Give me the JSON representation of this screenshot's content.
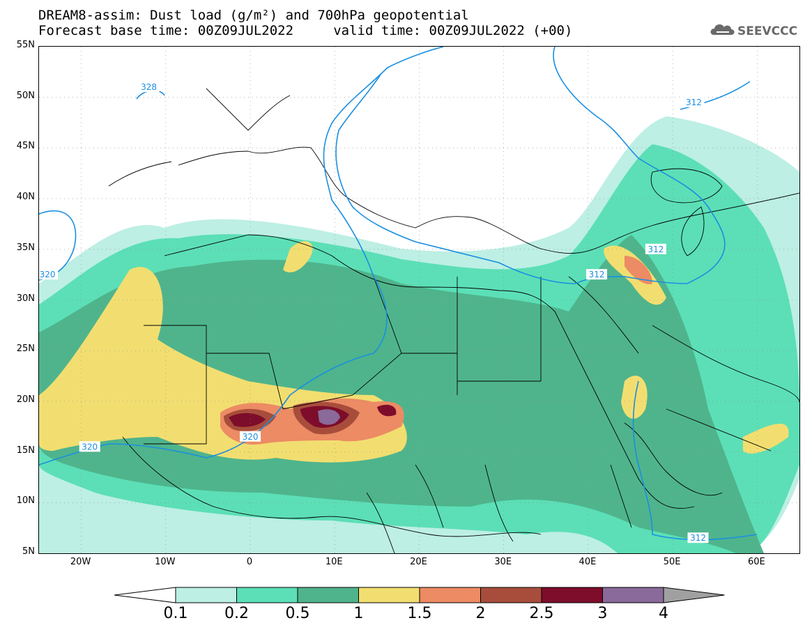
{
  "title": {
    "line1": "DREAM8-assim: Dust load (g/m²) and 700hPa geopotential",
    "line2": "Forecast base time: 00Z09JUL2022     valid time: 00Z09JUL2022 (+00)"
  },
  "logo": {
    "text": "SEEVCCC",
    "icon": "cloud-logo-icon"
  },
  "axes": {
    "lat_labels": [
      "55N",
      "50N",
      "45N",
      "40N",
      "35N",
      "30N",
      "25N",
      "20N",
      "15N",
      "10N",
      "5N"
    ],
    "lon_labels": [
      "20W",
      "10W",
      "0",
      "10E",
      "20E",
      "30E",
      "40E",
      "50E",
      "60E"
    ]
  },
  "map": {
    "lon_range": [
      -25,
      65
    ],
    "lat_range": [
      5,
      55
    ],
    "grid": true,
    "contour_labels": [
      {
        "text": "328",
        "lon": -12,
        "lat": 51
      },
      {
        "text": "320",
        "lon": -24,
        "lat": 32.5
      },
      {
        "text": "320",
        "lon": -19,
        "lat": 15.5
      },
      {
        "text": "320",
        "lon": 0,
        "lat": 16.5
      },
      {
        "text": "312",
        "lon": 41,
        "lat": 32.5
      },
      {
        "text": "312",
        "lon": 48,
        "lat": 35
      },
      {
        "text": "312",
        "lon": 52.5,
        "lat": 49.5
      },
      {
        "text": "312",
        "lon": 53,
        "lat": 6.5
      }
    ]
  },
  "colorbar": {
    "labels": [
      "0.1",
      "0.2",
      "0.5",
      "1",
      "1.5",
      "2",
      "2.5",
      "3",
      "4"
    ],
    "colors": [
      "#bdefe4",
      "#5cdfb6",
      "#4fb48c",
      "#f2de70",
      "#ec8b64",
      "#a84d3b",
      "#7d0d2a",
      "#8a6a9a",
      "#a0a0a0"
    ],
    "below_color": "#ffffff"
  },
  "colors": {
    "contour": "#1a8fe0",
    "border": "#000000"
  }
}
